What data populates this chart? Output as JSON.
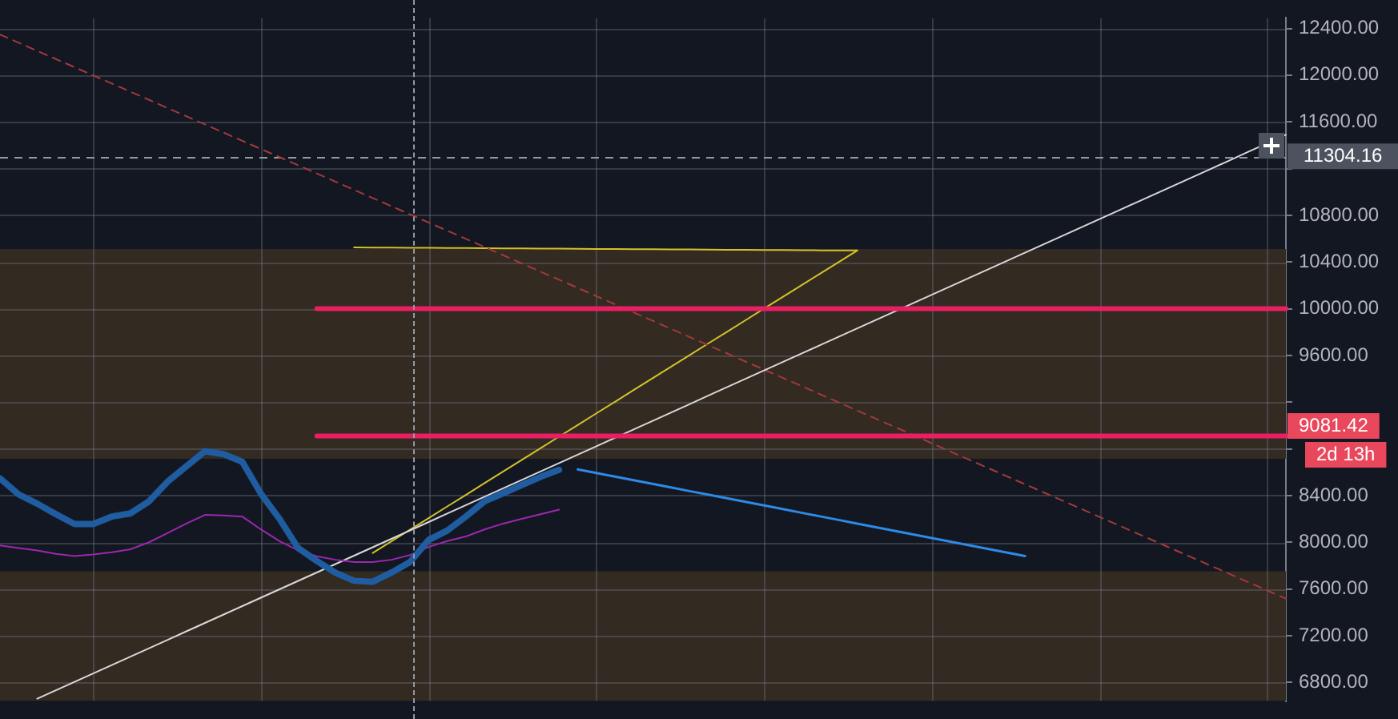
{
  "chart_data": {
    "type": "line",
    "tick_labels": "y",
    "grid": true,
    "legend": false,
    "marker": "none",
    "categories": [
      null,
      null,
      null,
      null,
      null,
      null,
      null,
      null,
      null,
      null,
      null,
      null,
      null,
      null,
      null,
      null,
      null,
      null,
      null,
      null,
      null,
      null,
      null,
      null,
      null,
      null,
      null,
      null,
      null,
      null,
      null,
      null,
      null,
      null,
      null,
      null,
      null,
      null,
      null,
      null,
      null,
      null,
      null,
      null,
      null,
      null,
      null,
      null,
      null,
      null,
      null,
      null,
      null,
      null,
      null,
      null,
      null,
      null,
      null,
      null,
      null,
      null,
      null,
      null,
      null,
      null,
      null,
      null,
      null,
      null
    ],
    "ylim": [
      6640,
      12490
    ],
    "yticks": [
      {
        "value": 6800,
        "label": "6800.00"
      },
      {
        "value": 7200,
        "label": "7200.00"
      },
      {
        "value": 7600,
        "label": "7600.00"
      },
      {
        "value": 8000,
        "label": "8000.00"
      },
      {
        "value": 8400,
        "label": "8400.00"
      },
      {
        "value": 8800,
        "label": null
      },
      {
        "value": 9200,
        "label": null
      },
      {
        "value": 9600,
        "label": "9600.00"
      },
      {
        "value": 10000,
        "label": "10000.00"
      },
      {
        "value": 10400,
        "label": "10400.00"
      },
      {
        "value": 10800,
        "label": "10800.00"
      },
      {
        "value": 11200,
        "label": null
      },
      {
        "value": 11600,
        "label": "11600.00"
      },
      {
        "value": 12000,
        "label": "12000.00"
      },
      {
        "value": 12400,
        "label": "12400.00"
      }
    ],
    "bands": [
      {
        "axis": "y",
        "from": 8715,
        "to": 10512,
        "color": "#332a22"
      },
      {
        "axis": "y",
        "from": 6640,
        "to": 7752,
        "color": "#332a22"
      }
    ],
    "ref_lines": [
      {
        "axis": "y",
        "value": 11304.16,
        "label": "11304.16",
        "color": "#9598a1",
        "line_style": "dashed"
      }
    ],
    "annotations": [
      "9081.42",
      "2d 13h"
    ],
    "series": [
      {
        "color": "#1f5ca0",
        "values": [
          8546,
          8410,
          8330,
          8240,
          8156,
          8156,
          8220,
          8247,
          8351,
          8520,
          8650,
          8780,
          8754,
          8689,
          8416,
          8200,
          7950,
          7840,
          7739,
          7670,
          7661,
          7740,
          7830,
          8020,
          8100,
          8220,
          8350,
          8420,
          8490,
          8560,
          8620,
          null,
          null,
          null,
          null,
          null,
          null,
          null,
          null,
          null,
          null,
          null,
          null,
          null,
          null,
          null,
          null,
          null,
          null,
          null,
          null,
          null,
          null,
          null,
          null,
          null,
          null,
          null,
          null,
          null,
          null,
          null,
          null,
          null,
          null,
          null,
          null,
          null,
          null,
          null
        ]
      },
      {
        "color": "#9c27b0",
        "values": [
          7973,
          7950,
          7930,
          7900,
          7882,
          7895,
          7915,
          7940,
          8000,
          8080,
          8160,
          8234,
          8230,
          8220,
          8110,
          8010,
          7930,
          7880,
          7850,
          7830,
          7830,
          7850,
          7890,
          7960,
          8010,
          8050,
          8110,
          8160,
          8200,
          8240,
          8280,
          null,
          null,
          null,
          null,
          null,
          null,
          null,
          null,
          null,
          null,
          null,
          null,
          null,
          null,
          null,
          null,
          null,
          null,
          null,
          null,
          null,
          null,
          null,
          null,
          null,
          null,
          null,
          null,
          null,
          null,
          null,
          null,
          null,
          null,
          null,
          null,
          null,
          null,
          null
        ]
      },
      {
        "color": "#e91e63",
        "values": [
          null,
          null,
          null,
          null,
          null,
          null,
          null,
          null,
          null,
          null,
          null,
          null,
          null,
          null,
          null,
          null,
          null,
          10000,
          10000,
          10000,
          10000,
          10000,
          10000,
          10000,
          10000,
          10000,
          10000,
          10000,
          10000,
          10000,
          10000,
          10000,
          10000,
          10000,
          10000,
          10000,
          10000,
          10000,
          10000,
          10000,
          10000,
          10000,
          10000,
          10000,
          10000,
          10000,
          10000,
          10000,
          10000,
          10000,
          10000,
          10000,
          10000,
          10000,
          10000,
          10000,
          10000,
          10000,
          10000,
          10000,
          10000,
          10000,
          10000,
          10000,
          10000,
          10000,
          10000,
          10000,
          10000,
          10000
        ]
      },
      {
        "color": "#e91e63",
        "values": [
          null,
          null,
          null,
          null,
          null,
          null,
          null,
          null,
          null,
          null,
          null,
          null,
          null,
          null,
          null,
          null,
          null,
          8911,
          8911,
          8911,
          8911,
          8911,
          8911,
          8911,
          8911,
          8911,
          8911,
          8911,
          8911,
          8911,
          8911,
          8911,
          8911,
          8911,
          8911,
          8911,
          8911,
          8911,
          8911,
          8911,
          8911,
          8911,
          8911,
          8911,
          8911,
          8911,
          8911,
          8911,
          8911,
          8911,
          8911,
          8911,
          8911,
          8911,
          8911,
          8911,
          8911,
          8911,
          8911,
          8911,
          8911,
          8911,
          8911,
          8911,
          8911,
          8911,
          8911,
          8911,
          8911,
          8911
        ]
      },
      {
        "color": "#d8d8d8",
        "values": [
          null,
          null,
          6660,
          6732,
          6804,
          6876,
          6948,
          7020,
          7092,
          7164,
          7237,
          7309,
          7381,
          7453,
          7525,
          7597,
          7669,
          7741,
          7813,
          7885,
          7957,
          8029,
          8101,
          8173,
          8246,
          8318,
          8390,
          8462,
          8534,
          8606,
          8678,
          8750,
          8822,
          8894,
          8966,
          9038,
          9110,
          9182,
          9255,
          9327,
          9399,
          9471,
          9543,
          9615,
          9687,
          9759,
          9831,
          9903,
          9975,
          10047,
          10119,
          10191,
          10263,
          10336,
          10408,
          10480,
          10552,
          10624,
          10696,
          10768,
          10840,
          10912,
          10984,
          11056,
          11128,
          11200,
          11272,
          11345,
          11417,
          11489
        ]
      },
      {
        "color": "#a33a3a",
        "line_style": "dashed",
        "values": [
          12348,
          12278,
          12208,
          12138,
          12068,
          11998,
          11928,
          11858,
          11788,
          11718,
          11648,
          11578,
          11508,
          11438,
          11368,
          11298,
          11228,
          11158,
          11088,
          11018,
          10948,
          10878,
          10808,
          10738,
          10668,
          10598,
          10528,
          10458,
          10388,
          10318,
          10248,
          10178,
          10108,
          10038,
          9968,
          9898,
          9828,
          9758,
          9688,
          9618,
          9548,
          9478,
          9408,
          9338,
          9268,
          9198,
          9128,
          9058,
          8988,
          8918,
          8848,
          8777,
          8707,
          8637,
          8567,
          8497,
          8427,
          8357,
          8287,
          8217,
          8147,
          8077,
          8007,
          7937,
          7867,
          7797,
          7727,
          7657,
          7587,
          7517
        ]
      },
      {
        "color": "#d4c22a",
        "values": [
          null,
          null,
          null,
          null,
          null,
          null,
          null,
          null,
          null,
          null,
          null,
          null,
          null,
          null,
          null,
          null,
          null,
          null,
          null,
          10525,
          10524,
          10523,
          10522,
          10521,
          10520,
          10519,
          10518,
          10517,
          10516,
          10515,
          10514,
          10513,
          10512,
          10511,
          10510,
          10509,
          10508,
          10507,
          10506,
          10505,
          10504,
          10503,
          10502,
          10501,
          10500,
          10499,
          10499,
          null,
          null,
          null,
          null,
          null,
          null,
          null,
          null,
          null,
          null,
          null,
          null,
          null,
          null,
          null,
          null,
          null,
          null,
          null,
          null,
          null,
          null,
          null
        ]
      },
      {
        "color": "#d4c22a",
        "values": [
          null,
          null,
          null,
          null,
          null,
          null,
          null,
          null,
          null,
          null,
          null,
          null,
          null,
          null,
          null,
          null,
          null,
          null,
          null,
          null,
          7908,
          8008,
          8107,
          8207,
          8307,
          8406,
          8506,
          8606,
          8705,
          8805,
          8905,
          9004,
          9104,
          9203,
          9303,
          9403,
          9502,
          9602,
          9702,
          9801,
          9901,
          10001,
          10100,
          10200,
          10300,
          10399,
          10499,
          null,
          null,
          null,
          null,
          null,
          null,
          null,
          null,
          null,
          null,
          null,
          null,
          null,
          null,
          null,
          null,
          null,
          null,
          null,
          null,
          null,
          null,
          null
        ]
      },
      {
        "color": "#2e8ae6",
        "values": [
          null,
          null,
          null,
          null,
          null,
          null,
          null,
          null,
          null,
          null,
          null,
          null,
          null,
          null,
          null,
          null,
          null,
          null,
          null,
          null,
          null,
          null,
          null,
          null,
          null,
          null,
          null,
          null,
          null,
          null,
          null,
          8624,
          8593,
          8562,
          8531,
          8500,
          8469,
          8438,
          8408,
          8377,
          8346,
          8315,
          8284,
          8253,
          8222,
          8191,
          8160,
          8129,
          8098,
          8067,
          8036,
          8005,
          7974,
          7944,
          7913,
          7882,
          null,
          null,
          null,
          null,
          null,
          null,
          null,
          null,
          null,
          null,
          null,
          null,
          null,
          null
        ]
      }
    ]
  }
}
